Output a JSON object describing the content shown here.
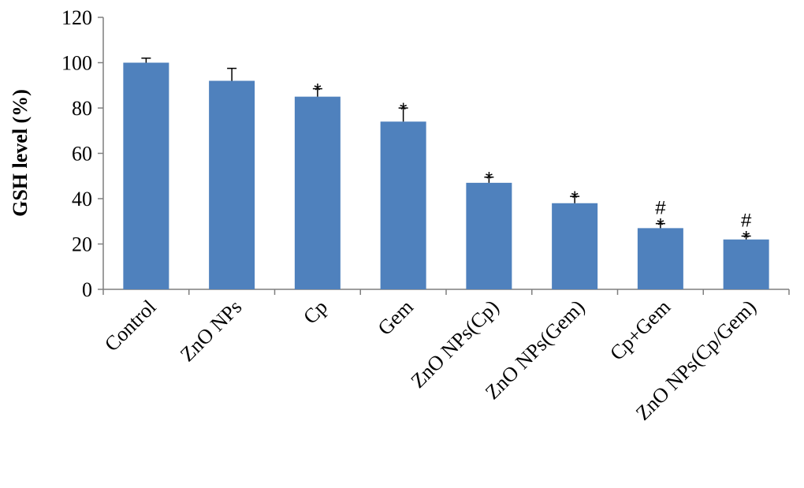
{
  "chart_data": {
    "type": "bar",
    "title": "",
    "xlabel": "",
    "ylabel": "GSH level (%)",
    "ylim": [
      0,
      120
    ],
    "yticks": [
      0,
      20,
      40,
      60,
      80,
      100,
      120
    ],
    "grid": false,
    "legend": "none",
    "bar_color": "#4f81bd",
    "categories": [
      "Control",
      "ZnO NPs",
      "Cp",
      "Gem",
      "ZnO NPs(Cp)",
      "ZnO NPs(Gem)",
      "Cp+Gem",
      "ZnO NPs(Cp/Gem)"
    ],
    "values": [
      100,
      92,
      85,
      74,
      47,
      38,
      27,
      22
    ],
    "error": [
      2,
      5.5,
      3.5,
      6,
      2.5,
      3,
      2,
      1.5
    ],
    "significance": [
      [],
      [],
      [
        "*"
      ],
      [
        "*"
      ],
      [
        "*"
      ],
      [
        "*"
      ],
      [
        "#",
        "*"
      ],
      [
        "#",
        "*"
      ]
    ]
  }
}
